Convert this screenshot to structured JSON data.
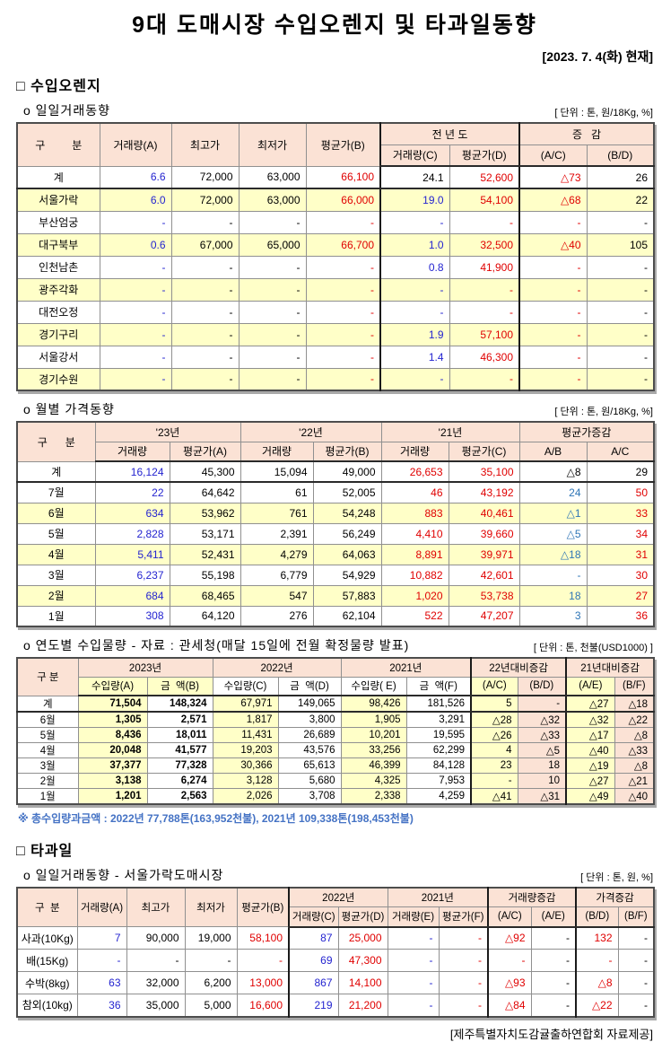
{
  "page": {
    "title": "9대 도매시장 수입오렌지 및 타과일동향",
    "date_note": "[2023. 7. 4(화) 현재]",
    "source_footer": "[제주특별자치도감귤출하연합회 자료제공]"
  },
  "sections": {
    "imported_orange_heading": "□ 수입오렌지",
    "other_fruit_heading": "□ 타과일"
  },
  "colors": {
    "header_bg": "#FBE2D5",
    "row_highlight": "#FFFFC8",
    "quantity_blue": "#2424D0",
    "change_blue": "#2E75B6",
    "price_red": "#E00000",
    "footnote_blue": "#4472C4"
  },
  "tables": {
    "daily": {
      "subheading": "o 일일거래동향",
      "unit": "[ 단위 : 톤, 원/18Kg, %]",
      "cols": [
        92,
        80,
        75,
        75,
        83,
        77,
        78,
        75,
        75
      ],
      "header": [
        [
          {
            "t": "구         분",
            "rs": 2
          },
          {
            "t": "거래량(A)",
            "rs": 2
          },
          {
            "t": "최고가",
            "rs": 2
          },
          {
            "t": "최저가",
            "rs": 2
          },
          {
            "t": "평균가(B)",
            "rs": 2
          },
          {
            "t": "전 년 도",
            "cs": 2,
            "c": "tl"
          },
          {
            "t": "증   감",
            "cs": 2,
            "c": "tl"
          }
        ],
        [
          {
            "t": "거래량(C)",
            "c": "tl"
          },
          {
            "t": "평균가(D)"
          },
          {
            "t": "(A/C)",
            "c": "tl"
          },
          {
            "t": "(B/D)"
          }
        ]
      ],
      "colcls": [
        "lbl",
        "b",
        "k",
        "k",
        "r",
        "b",
        "r",
        "r",
        "k"
      ],
      "thick": [
        5,
        7
      ],
      "rows": [
        {
          "label": "계",
          "sep": true,
          "cells": [
            "6.6",
            "72,000",
            "63,000",
            "66,100",
            {
              "t": "24.1",
              "c": "k"
            },
            "52,600",
            "△73",
            "26"
          ]
        },
        {
          "label": "서울가락",
          "bg": "y",
          "cells": [
            "6.0",
            "72,000",
            "63,000",
            "66,000",
            "19.0",
            "54,100",
            "△68",
            "22"
          ]
        },
        {
          "label": "부산엄궁",
          "cells": [
            "-",
            "-",
            "-",
            "-",
            "-",
            "-",
            "-",
            "-"
          ]
        },
        {
          "label": "대구북부",
          "bg": "y",
          "cells": [
            "0.6",
            "67,000",
            "65,000",
            "66,700",
            "1.0",
            "32,500",
            "△40",
            "105"
          ]
        },
        {
          "label": "인천남촌",
          "cells": [
            "-",
            "-",
            "-",
            "-",
            "0.8",
            "41,900",
            "-",
            "-"
          ]
        },
        {
          "label": "광주각화",
          "bg": "y",
          "cells": [
            "-",
            "-",
            "-",
            "-",
            "-",
            "-",
            "-",
            "-"
          ]
        },
        {
          "label": "대전오정",
          "cells": [
            "-",
            "-",
            "-",
            "-",
            "-",
            "-",
            "-",
            "-"
          ]
        },
        {
          "label": "경기구리",
          "bg": "y",
          "cells": [
            "-",
            "-",
            "-",
            "-",
            "1.9",
            "57,100",
            "-",
            "-"
          ]
        },
        {
          "label": "서울강서",
          "cells": [
            "-",
            "-",
            "-",
            "-",
            "1.4",
            "46,300",
            "-",
            "-"
          ]
        },
        {
          "label": "경기수원",
          "bg": "y",
          "cells": [
            "-",
            "-",
            "-",
            "-",
            "-",
            "-",
            "-",
            "-"
          ]
        }
      ]
    },
    "monthly": {
      "subheading": "o 월별 가격동향",
      "unit": "[ 단위 : 톤, 원/18Kg, %]",
      "cols": [
        87,
        83,
        79,
        81,
        76,
        75,
        79,
        75,
        75
      ],
      "header": [
        [
          {
            "t": "구      분",
            "rs": 2
          },
          {
            "t": "'23년",
            "cs": 2
          },
          {
            "t": "'22년",
            "cs": 2
          },
          {
            "t": "'21년",
            "cs": 2
          },
          {
            "t": "평균가증감",
            "cs": 2
          }
        ],
        [
          {
            "t": "거래량"
          },
          {
            "t": "평균가(A)",
            "c": "dl"
          },
          {
            "t": "거래량"
          },
          {
            "t": "평균가(B)",
            "c": "dl"
          },
          {
            "t": "거래량"
          },
          {
            "t": "평균가(C)",
            "c": "dl"
          },
          {
            "t": "A/B"
          },
          {
            "t": "A/C",
            "c": "dl"
          }
        ]
      ],
      "colcls": [
        "lbl",
        "b",
        "k",
        "k",
        "k",
        "r",
        "r",
        "b2",
        "r"
      ],
      "dotted": [
        2,
        4,
        6,
        8
      ],
      "rows": [
        {
          "label": "계",
          "sep": true,
          "cells": [
            "16,124",
            "45,300",
            "15,094",
            "49,000",
            "26,653",
            "35,100",
            {
              "t": "△8",
              "c": "k"
            },
            {
              "t": "29",
              "c": "k"
            }
          ]
        },
        {
          "label": "7월",
          "cells": [
            "22",
            "64,642",
            "61",
            "52,005",
            "46",
            "43,192",
            "24",
            "50"
          ]
        },
        {
          "label": "6월",
          "bg": "y",
          "cells": [
            "634",
            "53,962",
            "761",
            "54,248",
            "883",
            "40,461",
            "△1",
            "33"
          ]
        },
        {
          "label": "5월",
          "cells": [
            "2,828",
            "53,171",
            "2,391",
            "56,249",
            "4,410",
            "39,660",
            "△5",
            "34"
          ]
        },
        {
          "label": "4월",
          "bg": "y",
          "cells": [
            "5,411",
            "52,431",
            "4,279",
            "64,063",
            "8,891",
            "39,971",
            "△18",
            "31"
          ]
        },
        {
          "label": "3월",
          "cells": [
            "6,237",
            "55,198",
            "6,779",
            "54,929",
            "10,882",
            "42,601",
            "-",
            "30"
          ]
        },
        {
          "label": "2월",
          "bg": "y",
          "cells": [
            "684",
            "68,465",
            "547",
            "57,883",
            "1,020",
            "53,738",
            "18",
            "27"
          ]
        },
        {
          "label": "1월",
          "cells": [
            "308",
            "64,120",
            "276",
            "62,104",
            "522",
            "47,207",
            "3",
            "36"
          ]
        }
      ]
    },
    "yearly": {
      "subheading": "o 연도별 수입물량 - 자료 : 관세청(매달 15일에 전월 확정물량 발표)",
      "unit": "[ 단위 : 톤, 천불(USD1000) ]",
      "footnote": "※ 총수입량과금액 : 2022년 77,788톤(163,952천불),  2021년 109,338톤(198,453천불)",
      "cols": [
        68,
        77,
        73,
        73,
        70,
        73,
        72,
        52,
        54,
        54,
        44
      ],
      "header": [
        [
          {
            "t": "구 분",
            "rs": 2
          },
          {
            "t": "2023년",
            "cs": 2
          },
          {
            "t": "2022년",
            "cs": 2
          },
          {
            "t": "2021년",
            "cs": 2
          },
          {
            "t": "22년대비증감",
            "cs": 2,
            "c": "tl"
          },
          {
            "t": "21년대비증감",
            "cs": 2,
            "c": "tl"
          }
        ],
        [
          {
            "t": "수입량(A)",
            "c": "bgy"
          },
          {
            "t": "금  액(B)",
            "c": "bgy"
          },
          {
            "t": "수입량(C)",
            "c": "bgw"
          },
          {
            "t": "금  액(D)",
            "c": "bgw"
          },
          {
            "t": "수입량( E)",
            "c": "bgw"
          },
          {
            "t": "금  액(F)",
            "c": "bgw"
          },
          {
            "t": "(A/C)",
            "c": "bgy tl"
          },
          {
            "t": "(B/D)",
            "c": "bgp"
          },
          {
            "t": "(A/E)",
            "c": "bgy tl"
          },
          {
            "t": "(B/F)",
            "c": "bgp"
          }
        ]
      ],
      "colcls": [
        "lbl",
        "k bold bgy",
        "k bold",
        "k bgy",
        "k",
        "k bgy",
        "k",
        "k bgy",
        "k bgp",
        "k bgy",
        "k bgp"
      ],
      "thick": [
        7,
        9
      ],
      "rows": [
        {
          "label": "계",
          "sep": true,
          "cells": [
            "71,504",
            "148,324",
            "67,971",
            "149,065",
            "98,426",
            "181,526",
            "5",
            "-",
            "△27",
            "△18"
          ]
        },
        {
          "label": "6월",
          "cells": [
            "1,305",
            "2,571",
            "1,817",
            "3,800",
            "1,905",
            "3,291",
            "△28",
            "△32",
            "△32",
            "△22"
          ]
        },
        {
          "label": "5월",
          "cells": [
            "8,436",
            "18,011",
            "11,431",
            "26,689",
            "10,201",
            "19,595",
            "△26",
            "△33",
            "△17",
            "△8"
          ]
        },
        {
          "label": "4월",
          "cells": [
            "20,048",
            "41,577",
            "19,203",
            "43,576",
            "33,256",
            "62,299",
            "4",
            "△5",
            "△40",
            "△33"
          ]
        },
        {
          "label": "3월",
          "cells": [
            "37,377",
            "77,328",
            "30,366",
            "65,613",
            "46,399",
            "84,128",
            "23",
            "18",
            "△19",
            "△8"
          ]
        },
        {
          "label": "2월",
          "cells": [
            "3,138",
            "6,274",
            "3,128",
            "5,680",
            "4,325",
            "7,953",
            "-",
            "10",
            "△27",
            "△21"
          ]
        },
        {
          "label": "1월",
          "cells": [
            "1,201",
            "2,563",
            "2,026",
            "3,708",
            "2,338",
            "4,259",
            "△41",
            "△31",
            "△49",
            "△40"
          ]
        }
      ]
    },
    "fruit_daily": {
      "subheading": "o 일일거래동향 - 서울가락도매시장",
      "unit": "[ 단위 : 톤, 원, %]",
      "cols": [
        67,
        55,
        65,
        58,
        58,
        55,
        55,
        57,
        55,
        48,
        50,
        47,
        40
      ],
      "header": [
        [
          {
            "t": "구  분",
            "rs": 2
          },
          {
            "t": "거래량(A)",
            "rs": 2
          },
          {
            "t": "최고가",
            "rs": 2
          },
          {
            "t": "최저가",
            "rs": 2
          },
          {
            "t": "평균가(B)",
            "rs": 2
          },
          {
            "t": "2022년",
            "cs": 2,
            "c": "tl"
          },
          {
            "t": "2021년",
            "cs": 2
          },
          {
            "t": "거래량증감",
            "cs": 2,
            "c": "tl"
          },
          {
            "t": "가격증감",
            "cs": 2,
            "c": "tl"
          }
        ],
        [
          {
            "t": "거래량(C)",
            "c": "tl"
          },
          {
            "t": "평균가(D)"
          },
          {
            "t": "거래량(E)"
          },
          {
            "t": "평균가(F)"
          },
          {
            "t": "(A/C)",
            "c": "tl"
          },
          {
            "t": "(A/E)"
          },
          {
            "t": "(B/D)",
            "c": "tl"
          },
          {
            "t": "(B/F)"
          }
        ]
      ],
      "colcls": [
        "lbl",
        "b",
        "k",
        "k",
        "r",
        "b",
        "r",
        "b",
        "r",
        "r",
        "k",
        "r",
        "k"
      ],
      "thick": [
        5,
        9,
        11
      ],
      "rows": [
        {
          "label": "사과(10Kg)",
          "cells": [
            "7",
            "90,000",
            "19,000",
            "58,100",
            "87",
            "25,000",
            "-",
            "-",
            "△92",
            "-",
            "132",
            "-"
          ]
        },
        {
          "label": "배(15Kg)",
          "cells": [
            "-",
            "-",
            "-",
            "-",
            "69",
            "47,300",
            "-",
            "-",
            "-",
            "-",
            "-",
            "-"
          ]
        },
        {
          "label": "수박(8kg)",
          "cells": [
            "63",
            "32,000",
            "6,200",
            "13,000",
            "867",
            "14,100",
            "-",
            "-",
            "△93",
            "-",
            "△8",
            "-"
          ]
        },
        {
          "label": "참외(10kg)",
          "cells": [
            "36",
            "35,000",
            "5,000",
            "16,600",
            "219",
            "21,200",
            "-",
            "-",
            "△84",
            "-",
            "△22",
            "-"
          ]
        }
      ]
    }
  }
}
